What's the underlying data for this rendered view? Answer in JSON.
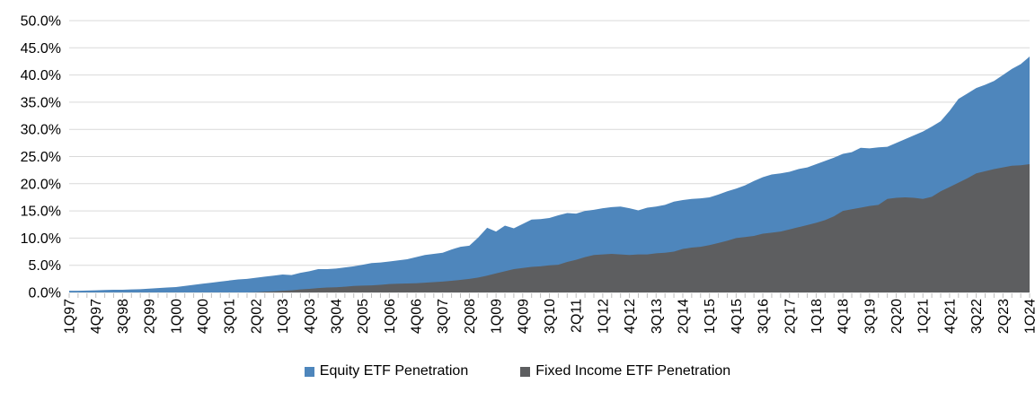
{
  "chart_data": {
    "type": "area",
    "mode": "overlapping-not-stacked",
    "title": "",
    "xlabel": "",
    "ylabel": "",
    "x_unit": "quarter",
    "x_start": "1Q97",
    "x_end": "1Q24",
    "n_points": 109,
    "x_tick_labels": [
      "1Q97",
      "4Q97",
      "3Q98",
      "2Q99",
      "1Q00",
      "4Q00",
      "3Q01",
      "2Q02",
      "1Q03",
      "4Q03",
      "3Q04",
      "2Q05",
      "1Q06",
      "4Q06",
      "3Q07",
      "2Q08",
      "1Q09",
      "4Q09",
      "3Q10",
      "2Q11",
      "1Q12",
      "4Q12",
      "3Q13",
      "2Q14",
      "1Q15",
      "4Q15",
      "3Q16",
      "2Q17",
      "1Q18",
      "4Q18",
      "3Q19",
      "2Q20",
      "1Q21",
      "4Q21",
      "3Q22",
      "2Q23",
      "1Q24"
    ],
    "x_label_every_n_points": 3,
    "ylim": [
      0,
      50
    ],
    "y_tick_step": 5,
    "y_tick_labels": [
      "0.0%",
      "5.0%",
      "10.0%",
      "15.0%",
      "20.0%",
      "25.0%",
      "30.0%",
      "35.0%",
      "40.0%",
      "45.0%",
      "50.0%"
    ],
    "grid": "horizontal",
    "legend_position": "bottom-center",
    "series": [
      {
        "name": "Equity ETF Penetration",
        "color": "#4E86BC",
        "values": [
          0.3,
          0.3,
          0.35,
          0.4,
          0.45,
          0.5,
          0.5,
          0.55,
          0.6,
          0.7,
          0.8,
          0.9,
          1.0,
          1.2,
          1.4,
          1.6,
          1.8,
          2.0,
          2.2,
          2.4,
          2.5,
          2.7,
          2.9,
          3.1,
          3.3,
          3.2,
          3.6,
          3.9,
          4.3,
          4.3,
          4.4,
          4.6,
          4.8,
          5.1,
          5.4,
          5.5,
          5.7,
          5.9,
          6.1,
          6.5,
          6.9,
          7.1,
          7.3,
          7.9,
          8.4,
          8.6,
          10.1,
          11.9,
          11.2,
          12.3,
          11.8,
          12.6,
          13.4,
          13.5,
          13.7,
          14.2,
          14.6,
          14.5,
          15.0,
          15.2,
          15.5,
          15.7,
          15.8,
          15.5,
          15.1,
          15.6,
          15.8,
          16.1,
          16.7,
          17.0,
          17.2,
          17.3,
          17.5,
          18.0,
          18.6,
          19.1,
          19.7,
          20.5,
          21.2,
          21.7,
          21.9,
          22.2,
          22.7,
          23.0,
          23.6,
          24.2,
          24.8,
          25.5,
          25.8,
          26.6,
          26.5,
          26.7,
          26.8,
          27.5,
          28.2,
          28.9,
          29.6,
          30.5,
          31.5,
          33.4,
          35.6,
          36.6,
          37.6,
          38.2,
          38.9,
          40.0,
          41.1,
          42.0,
          43.4
        ]
      },
      {
        "name": "Fixed Income ETF Penetration",
        "color": "#5D5E60",
        "values": [
          0,
          0,
          0,
          0,
          0,
          0,
          0,
          0,
          0,
          0,
          0,
          0,
          0,
          0,
          0,
          0,
          0,
          0,
          0,
          0,
          0,
          0.05,
          0.15,
          0.2,
          0.3,
          0.4,
          0.55,
          0.65,
          0.8,
          0.9,
          0.95,
          1.05,
          1.2,
          1.25,
          1.3,
          1.4,
          1.55,
          1.6,
          1.65,
          1.7,
          1.8,
          1.9,
          2.0,
          2.15,
          2.3,
          2.5,
          2.75,
          3.1,
          3.5,
          3.9,
          4.3,
          4.5,
          4.7,
          4.8,
          5.0,
          5.1,
          5.6,
          6.0,
          6.5,
          6.9,
          7.0,
          7.1,
          7.0,
          6.9,
          7.0,
          7.0,
          7.2,
          7.3,
          7.5,
          8.0,
          8.25,
          8.4,
          8.7,
          9.1,
          9.5,
          10.0,
          10.2,
          10.4,
          10.8,
          11.0,
          11.2,
          11.6,
          12.0,
          12.4,
          12.8,
          13.3,
          14.0,
          15.0,
          15.3,
          15.6,
          15.9,
          16.1,
          17.2,
          17.4,
          17.5,
          17.4,
          17.2,
          17.6,
          18.6,
          19.4,
          20.2,
          21.0,
          21.9,
          22.3,
          22.7,
          23.0,
          23.3,
          23.4,
          23.6
        ]
      }
    ]
  },
  "colors": {
    "background": "#FFFFFF",
    "gridline": "#D9D9D9",
    "tick": "#BFBFBF",
    "axis_text": "#000000"
  }
}
